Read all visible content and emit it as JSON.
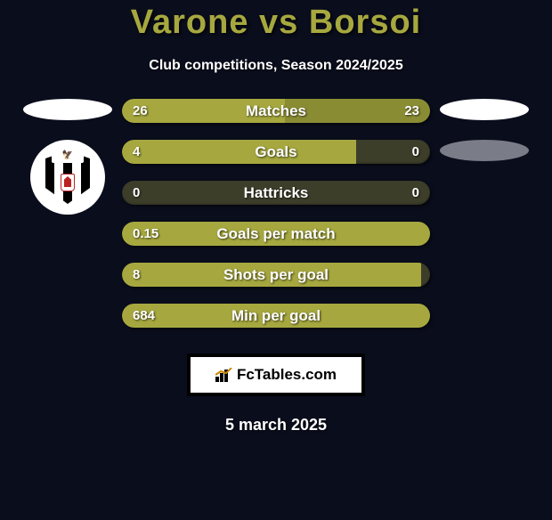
{
  "title_color": "#a6a83f",
  "title": "Varone vs Borsoi",
  "subtitle": "Club competitions, Season 2024/2025",
  "colors": {
    "background": "#0a0d1c",
    "bar_left": "#a6a83f",
    "bar_right": "#8a8c34",
    "bar_bg": "#3d3e2a",
    "text": "#ffffff"
  },
  "stats": [
    {
      "label": "Matches",
      "left_val": "26",
      "right_val": "23",
      "left_pct": 53,
      "right_pct": 47
    },
    {
      "label": "Goals",
      "left_val": "4",
      "right_val": "0",
      "left_pct": 76,
      "right_pct": 0
    },
    {
      "label": "Hattricks",
      "left_val": "0",
      "right_val": "0",
      "left_pct": 0,
      "right_pct": 0
    },
    {
      "label": "Goals per match",
      "left_val": "0.15",
      "right_val": "",
      "left_pct": 100,
      "right_pct": 0
    },
    {
      "label": "Shots per goal",
      "left_val": "8",
      "right_val": "",
      "left_pct": 97,
      "right_pct": 0
    },
    {
      "label": "Min per goal",
      "left_val": "684",
      "right_val": "",
      "left_pct": 100,
      "right_pct": 0
    }
  ],
  "footer_brand": "FcTables.com",
  "footer_date": "5 march 2025"
}
